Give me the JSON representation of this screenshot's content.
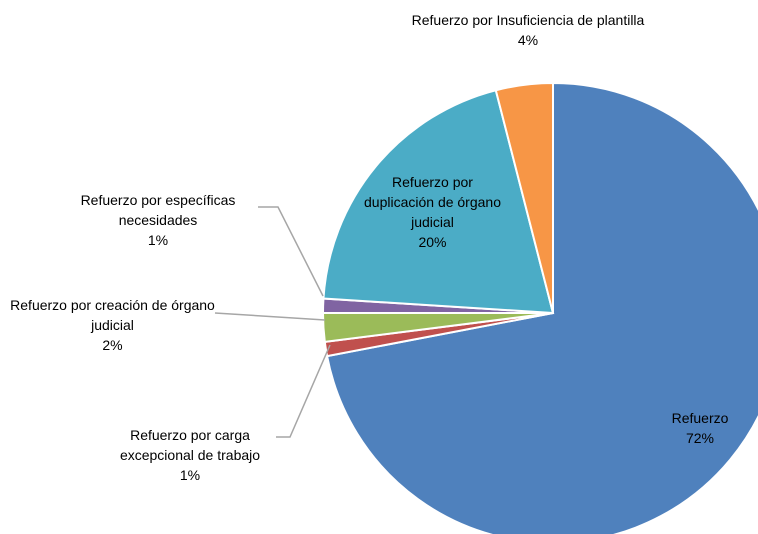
{
  "chart_data": {
    "type": "pie",
    "categories": [
      "Refuerzo",
      "Refuerzo por carga excepcional de trabajo",
      "Refuerzo por creación de órgano judicial",
      "Refuerzo por específicas necesidades",
      "Refuerzo por duplicación de órgano judicial",
      "Refuerzo por Insuficiencia de plantilla"
    ],
    "values": [
      72,
      1,
      2,
      1,
      20,
      4
    ],
    "value_labels": [
      "72%",
      "1%",
      "2%",
      "1%",
      "20%",
      "4%"
    ],
    "colors": [
      "#4f81bd",
      "#c0504d",
      "#9bbb59",
      "#8064a2",
      "#4bacc6",
      "#f79646"
    ]
  }
}
